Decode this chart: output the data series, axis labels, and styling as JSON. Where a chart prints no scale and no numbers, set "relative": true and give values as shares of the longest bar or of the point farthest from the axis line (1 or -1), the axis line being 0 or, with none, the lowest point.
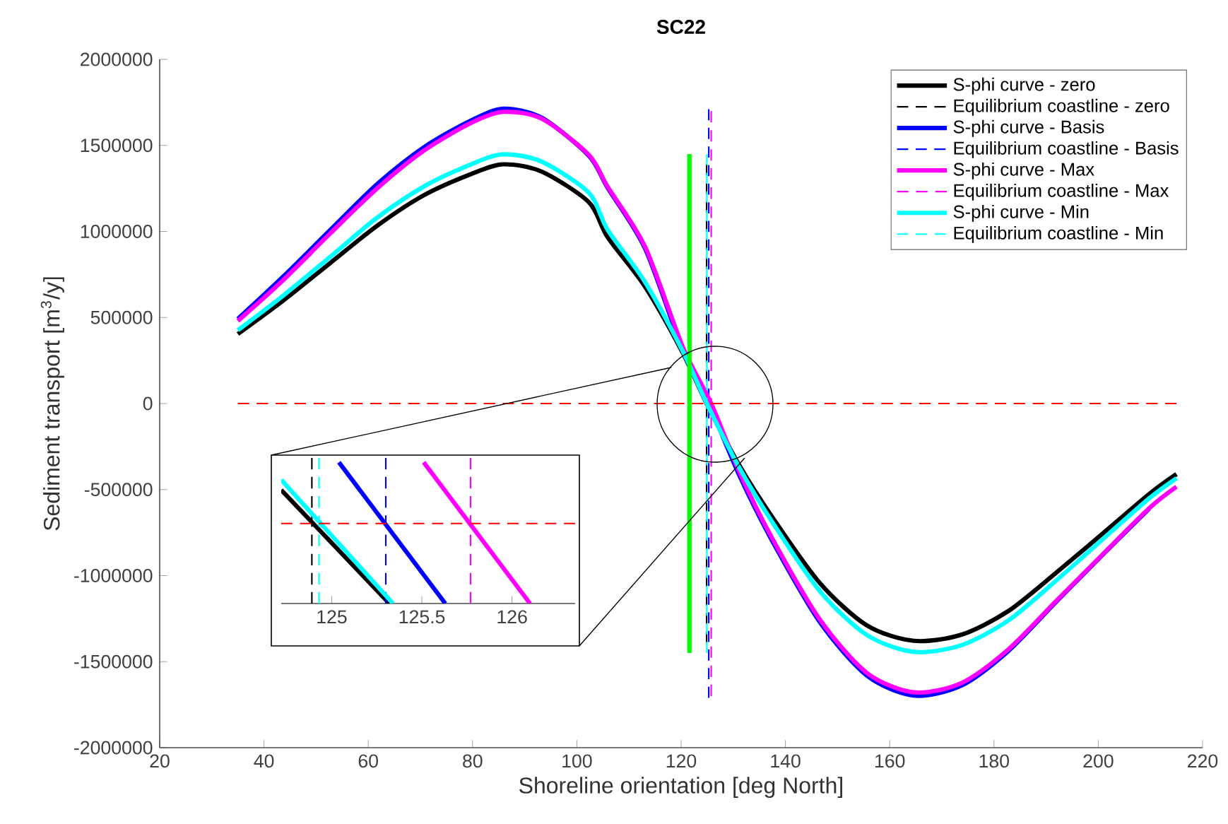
{
  "chart_data": [
    {
      "type": "line",
      "title": "SC22",
      "xlabel": "Shoreline orientation [deg North]",
      "ylabel": "Sediment transport [m$^{3}$/y]",
      "xlim": [
        20,
        220
      ],
      "ylim": [
        -2000000,
        2000000
      ],
      "xticks": [
        20,
        40,
        60,
        80,
        100,
        120,
        140,
        160,
        180,
        200,
        220
      ],
      "yticks": [
        -2000000,
        -1500000,
        -1000000,
        -500000,
        0,
        500000,
        1000000,
        1500000,
        2000000
      ],
      "legend": "top right",
      "series": [
        {
          "name": "S-phi curve - zero",
          "color": "#000000",
          "line_style": "solid",
          "x": [
            35,
            43.6,
            52.6,
            61.7,
            70.7,
            79.7,
            85.9,
            93.3,
            102.3,
            105.9,
            113.1,
            120.3,
            124.9,
            131.2,
            137.5,
            146.6,
            155.6,
            164.6,
            173.7,
            182.7,
            191.7,
            200.8,
            209.8,
            215
          ],
          "values": [
            404000,
            596000,
            814000,
            1033000,
            1211000,
            1333000,
            1390000,
            1347000,
            1170000,
            967000,
            678000,
            295000,
            0,
            -361000,
            -661000,
            -1043000,
            -1289000,
            -1379000,
            -1344000,
            -1207000,
            -989000,
            -757000,
            -525000,
            -410000
          ]
        },
        {
          "name": "Equilibrium coastline - zero",
          "color": "#000000",
          "line_style": "dashed",
          "x": [
            124.89,
            124.89
          ],
          "values": [
            -1390000,
            1390000
          ]
        },
        {
          "name": "S-phi curve - Basis",
          "color": "#0000ff",
          "line_style": "solid",
          "x": [
            35,
            43.6,
            52.6,
            61.7,
            70.7,
            79.7,
            85.9,
            93.3,
            102.3,
            105.9,
            113.1,
            120.3,
            125.3,
            131.2,
            137.5,
            146.6,
            155.6,
            164.6,
            173.7,
            182.7,
            191.7,
            200.8,
            209.8
          ],
          "values": [
            492000,
            735000,
            1005000,
            1275000,
            1490000,
            1645000,
            1713000,
            1660000,
            1440000,
            1254000,
            900000,
            310000,
            0,
            -420000,
            -800000,
            -1270000,
            -1580000,
            -1697000,
            -1640000,
            -1440000,
            -1160000,
            -880000,
            -610000
          ]
        },
        {
          "name": "Equilibrium coastline - Basis",
          "color": "#0000ff",
          "line_style": "dashed",
          "x": [
            125.3,
            125.3
          ],
          "values": [
            -1710000,
            1710000
          ]
        },
        {
          "name": "S-phi curve - Max",
          "color": "#ff00ff",
          "line_style": "solid",
          "x": [
            35,
            43.6,
            52.6,
            61.7,
            70.7,
            79.7,
            85.9,
            93.3,
            102.3,
            105.9,
            113.1,
            120.3,
            125.77,
            131.2,
            137.5,
            146.6,
            155.6,
            164.6,
            173.7,
            182.7,
            191.7,
            200.8,
            209.8,
            215
          ],
          "values": [
            480000,
            715000,
            985000,
            1250000,
            1470000,
            1630000,
            1695000,
            1655000,
            1445000,
            1260000,
            910000,
            330000,
            0,
            -400000,
            -785000,
            -1255000,
            -1565000,
            -1678000,
            -1625000,
            -1430000,
            -1155000,
            -878000,
            -608000,
            -484000
          ]
        },
        {
          "name": "Equilibrium coastline - Max",
          "color": "#ff00ff",
          "line_style": "dashed",
          "x": [
            125.77,
            125.77
          ],
          "values": [
            -1700000,
            1700000
          ]
        },
        {
          "name": "S-phi curve - Min",
          "color": "#00ffff",
          "line_style": "solid",
          "x": [
            35,
            43.6,
            52.6,
            61.7,
            70.7,
            79.7,
            85.9,
            93.3,
            102.3,
            105.9,
            113.1,
            120.3,
            124.93,
            131.2,
            137.5,
            146.6,
            155.6,
            164.6,
            173.7,
            182.7,
            191.7,
            200.8,
            209.8,
            215
          ],
          "values": [
            426000,
            625000,
            850000,
            1080000,
            1262000,
            1390000,
            1448000,
            1405000,
            1225000,
            1010000,
            705000,
            305000,
            0,
            -375000,
            -690000,
            -1090000,
            -1345000,
            -1443000,
            -1405000,
            -1262000,
            -1035000,
            -790000,
            -550000,
            -434000
          ]
        },
        {
          "name": "Equilibrium coastline - Min",
          "color": "#00ffff",
          "line_style": "dashed",
          "x": [
            124.93,
            124.93
          ],
          "values": [
            -1450000,
            1450000
          ]
        },
        {
          "color": "#00ff00",
          "line_style": "solid",
          "x": [
            121.6,
            121.6
          ],
          "values": [
            -1450000,
            1450000
          ]
        },
        {
          "color": "#ff0000",
          "line_style": "dashed",
          "x": [
            35,
            215
          ],
          "values": [
            0,
            0
          ]
        }
      ]
    },
    {
      "type": "line",
      "relative": true,
      "xlim": [
        124.72,
        126.35
      ],
      "xticks": [
        125,
        125.5,
        126
      ],
      "tick_labels": "x",
      "series": [
        {
          "color": "#000000",
          "line_style": "solid",
          "x": [
            124.72,
            125.32
          ],
          "values": [
            0.78,
            0
          ]
        },
        {
          "color": "#000000",
          "line_style": "dashed",
          "x": [
            124.89,
            124.89
          ],
          "values": [
            0,
            1
          ]
        },
        {
          "color": "#0000ff",
          "line_style": "solid",
          "x": [
            125.04,
            125.63
          ],
          "values": [
            0.97,
            0
          ]
        },
        {
          "color": "#0000ff",
          "line_style": "dashed",
          "x": [
            125.3,
            125.3
          ],
          "values": [
            0,
            1
          ]
        },
        {
          "color": "#ff00ff",
          "line_style": "solid",
          "x": [
            125.51,
            126.1
          ],
          "values": [
            0.97,
            0
          ]
        },
        {
          "color": "#ff00ff",
          "line_style": "dashed",
          "x": [
            125.77,
            125.77
          ],
          "values": [
            0,
            1
          ]
        },
        {
          "color": "#00ffff",
          "line_style": "solid",
          "x": [
            124.72,
            125.34
          ],
          "values": [
            0.85,
            0
          ]
        },
        {
          "color": "#00ffff",
          "line_style": "dashed",
          "x": [
            124.93,
            124.93
          ],
          "values": [
            0,
            1
          ]
        },
        {
          "color": "#ff0000",
          "line_style": "dashed",
          "x": [
            124.72,
            126.35
          ],
          "values": [
            0.55,
            0.55
          ]
        }
      ]
    }
  ]
}
